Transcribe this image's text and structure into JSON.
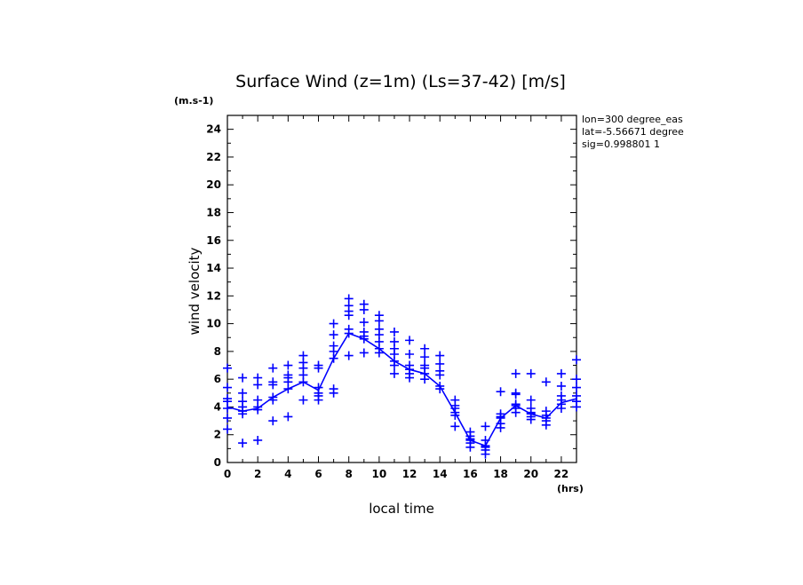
{
  "chart_data": {
    "type": "scatter",
    "title": "Surface Wind (z=1m) (Ls=37-42) [m/s]",
    "xlabel": "local time",
    "ylabel": "wind velocity",
    "x_unit": "(hrs)",
    "y_unit": "(m.s-1)",
    "xlim": [
      0,
      23
    ],
    "ylim": [
      0,
      25
    ],
    "x_ticks": [
      0,
      2,
      4,
      6,
      8,
      10,
      12,
      14,
      16,
      18,
      20,
      22
    ],
    "y_ticks": [
      0,
      2,
      4,
      6,
      8,
      10,
      12,
      14,
      16,
      18,
      20,
      22,
      24
    ],
    "grid": false,
    "info": [
      "lon=300 degree_eas",
      "lat=-5.56671 degree",
      "sig=0.998801 1"
    ],
    "colors": {
      "series": "#0000ff",
      "axes": "#000000"
    },
    "mean_line": {
      "x": [
        0,
        1,
        2,
        3,
        4,
        5,
        6,
        7,
        8,
        9,
        10,
        11,
        12,
        13,
        14,
        15,
        16,
        17,
        18,
        19,
        20,
        21,
        22,
        23
      ],
      "y": [
        4.0,
        3.7,
        3.9,
        4.7,
        5.3,
        5.8,
        5.2,
        7.5,
        9.3,
        8.9,
        8.2,
        7.3,
        6.7,
        6.4,
        5.5,
        3.6,
        1.6,
        1.2,
        3.2,
        4.1,
        3.5,
        3.2,
        4.3,
        4.6
      ]
    },
    "samples": [
      {
        "x": 0,
        "y": [
          6.8,
          5.4,
          4.6,
          4.4,
          3.9,
          3.2,
          2.4
        ]
      },
      {
        "x": 1,
        "y": [
          6.1,
          5.0,
          4.4,
          4.0,
          3.7,
          3.5,
          1.4
        ]
      },
      {
        "x": 2,
        "y": [
          6.1,
          5.6,
          4.5,
          4.0,
          3.8,
          1.6
        ]
      },
      {
        "x": 3,
        "y": [
          6.8,
          5.8,
          5.6,
          4.7,
          4.5,
          3.0
        ]
      },
      {
        "x": 4,
        "y": [
          7.0,
          6.3,
          6.1,
          5.8,
          5.3,
          3.3
        ]
      },
      {
        "x": 5,
        "y": [
          7.7,
          7.2,
          6.8,
          6.3,
          5.8,
          4.5
        ]
      },
      {
        "x": 6,
        "y": [
          7.0,
          6.8,
          5.4,
          5.0,
          4.8,
          4.5
        ]
      },
      {
        "x": 7,
        "y": [
          10.0,
          9.2,
          8.4,
          8.0,
          7.5,
          5.3,
          5.0
        ]
      },
      {
        "x": 8,
        "y": [
          11.8,
          11.3,
          10.9,
          10.6,
          9.6,
          9.3,
          7.7
        ]
      },
      {
        "x": 9,
        "y": [
          11.4,
          11.0,
          10.1,
          9.4,
          9.1,
          8.9,
          7.9
        ]
      },
      {
        "x": 10,
        "y": [
          10.6,
          10.2,
          9.6,
          9.2,
          8.7,
          8.2,
          7.9
        ]
      },
      {
        "x": 11,
        "y": [
          9.4,
          8.7,
          8.2,
          7.8,
          7.3,
          7.0,
          6.4
        ]
      },
      {
        "x": 12,
        "y": [
          8.8,
          7.8,
          7.0,
          6.7,
          6.4,
          6.1
        ]
      },
      {
        "x": 13,
        "y": [
          8.2,
          7.6,
          7.0,
          6.8,
          6.4,
          6.0
        ]
      },
      {
        "x": 14,
        "y": [
          7.7,
          7.1,
          6.6,
          6.3,
          5.5,
          5.3
        ]
      },
      {
        "x": 15,
        "y": [
          4.5,
          4.1,
          3.9,
          3.6,
          3.4,
          2.6
        ]
      },
      {
        "x": 16,
        "y": [
          2.2,
          1.9,
          1.7,
          1.6,
          1.4,
          1.1
        ]
      },
      {
        "x": 17,
        "y": [
          2.6,
          1.6,
          1.2,
          1.1,
          0.9,
          0.6
        ]
      },
      {
        "x": 18,
        "y": [
          5.1,
          3.5,
          3.3,
          3.2,
          2.8,
          2.5
        ]
      },
      {
        "x": 19,
        "y": [
          6.4,
          5.0,
          4.9,
          4.2,
          4.1,
          3.9,
          3.6
        ]
      },
      {
        "x": 20,
        "y": [
          6.4,
          4.5,
          3.9,
          3.6,
          3.5,
          3.3,
          3.1
        ]
      },
      {
        "x": 21,
        "y": [
          5.8,
          3.7,
          3.4,
          3.2,
          3.0,
          2.7
        ]
      },
      {
        "x": 22,
        "y": [
          6.4,
          5.5,
          4.8,
          4.5,
          4.2,
          3.9
        ]
      },
      {
        "x": 23,
        "y": [
          7.4,
          6.0,
          5.4,
          4.8,
          4.4,
          4.0
        ]
      }
    ]
  }
}
